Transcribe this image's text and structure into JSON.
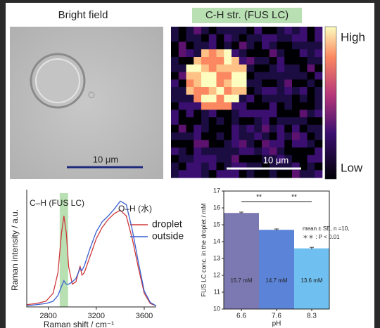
{
  "panels": {
    "bright_title": "Bright field",
    "raman_title": "C-H str. (FUS LC)",
    "scale_left": "10 μm",
    "scale_right": "10 μm",
    "colorbar_high": "High",
    "colorbar_low": "Low"
  },
  "chart_data": [
    {
      "type": "line",
      "xlabel": "Raman shift / cm⁻¹",
      "ylabel": "Raman intensity / a.u.",
      "annotations": [
        "C–H (FUS LC)",
        "O–H (水)"
      ],
      "highlight": [
        2895,
        2965
      ],
      "xlim": [
        2620,
        3700
      ],
      "xticks": [
        2800,
        3200,
        3600
      ],
      "ylim": [
        0,
        1
      ],
      "x": [
        2620,
        2700,
        2780,
        2840,
        2880,
        2910,
        2930,
        2950,
        2970,
        3000,
        3030,
        3050,
        3065,
        3080,
        3100,
        3150,
        3200,
        3250,
        3300,
        3350,
        3400,
        3450,
        3500,
        3550,
        3600,
        3650,
        3700
      ],
      "series": [
        {
          "name": "droplet",
          "color": "#d03a3a",
          "values": [
            0.02,
            0.03,
            0.05,
            0.12,
            0.3,
            0.65,
            0.8,
            0.65,
            0.35,
            0.2,
            0.22,
            0.3,
            0.36,
            0.28,
            0.3,
            0.45,
            0.6,
            0.7,
            0.77,
            0.82,
            0.85,
            0.8,
            0.6,
            0.35,
            0.12,
            0.03,
            0.01
          ]
        },
        {
          "name": "outside",
          "color": "#3a5fd0",
          "values": [
            0.01,
            0.02,
            0.03,
            0.05,
            0.1,
            0.18,
            0.23,
            0.2,
            0.2,
            0.22,
            0.25,
            0.3,
            0.34,
            0.32,
            0.36,
            0.52,
            0.66,
            0.75,
            0.8,
            0.86,
            0.93,
            0.9,
            0.68,
            0.4,
            0.14,
            0.04,
            0.01
          ]
        }
      ]
    },
    {
      "type": "bar",
      "xlabel": "pH",
      "ylabel": "FUS LC conc. in the droplet / mM",
      "categories": [
        "6.6",
        "7.6",
        "8.3"
      ],
      "values": [
        15.7,
        14.7,
        13.6
      ],
      "errors": [
        0.05,
        0.05,
        0.06
      ],
      "value_labels": [
        "15.7 mM",
        "14.7 mM",
        "13.6 mM"
      ],
      "colors": [
        "#7c78b2",
        "#5b83d8",
        "#6fc0f0"
      ],
      "ylim": [
        10,
        17
      ],
      "yticks": [
        10,
        11,
        12,
        13,
        14,
        15,
        16,
        17
      ],
      "annotations": [
        "mean ± SE, n =10,",
        "＊＊ : P < 0.01"
      ],
      "significance": [
        "**",
        "**"
      ]
    }
  ]
}
